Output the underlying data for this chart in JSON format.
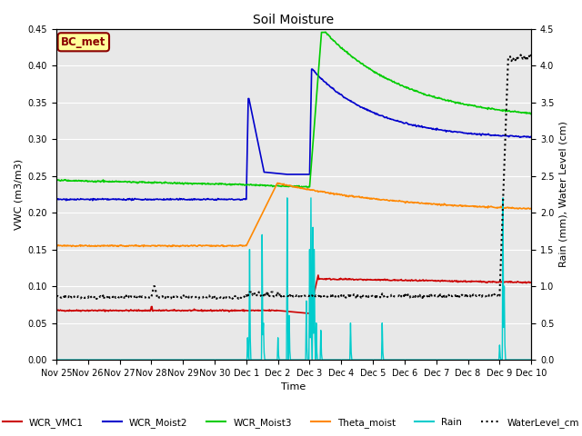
{
  "title": "Soil Moisture",
  "xlabel": "Time",
  "ylabel_left": "VWC (m3/m3)",
  "ylabel_right": "Rain (mm), Water Level (cm)",
  "ylim_left": [
    0.0,
    0.45
  ],
  "ylim_right": [
    0.0,
    4.5
  ],
  "fig_facecolor": "#ffffff",
  "plot_bg_color": "#e8e8e8",
  "annotation_text": "BC_met",
  "annotation_bg": "#ffff99",
  "annotation_border": "#8b0000",
  "series": {
    "WCR_VMC1": {
      "color": "#cc0000",
      "lw": 1.2,
      "linestyle": "solid"
    },
    "WCR_Moist2": {
      "color": "#0000cc",
      "lw": 1.2,
      "linestyle": "solid"
    },
    "WCR_Moist3": {
      "color": "#00cc00",
      "lw": 1.2,
      "linestyle": "solid"
    },
    "Theta_moist": {
      "color": "#ff8800",
      "lw": 1.2,
      "linestyle": "solid"
    },
    "Rain": {
      "color": "#00cccc",
      "lw": 1.0,
      "linestyle": "solid"
    },
    "WaterLevel_cm": {
      "color": "#000000",
      "lw": 1.5,
      "linestyle": "dotted"
    }
  },
  "tick_label_fontsize": 7,
  "axis_label_fontsize": 8,
  "title_fontsize": 10,
  "legend_fontsize": 7.5,
  "yticks_left": [
    0.0,
    0.05,
    0.1,
    0.15,
    0.2,
    0.25,
    0.3,
    0.35,
    0.4,
    0.45
  ],
  "yticks_right": [
    0.0,
    0.5,
    1.0,
    1.5,
    2.0,
    2.5,
    3.0,
    3.5,
    4.0,
    4.5
  ]
}
